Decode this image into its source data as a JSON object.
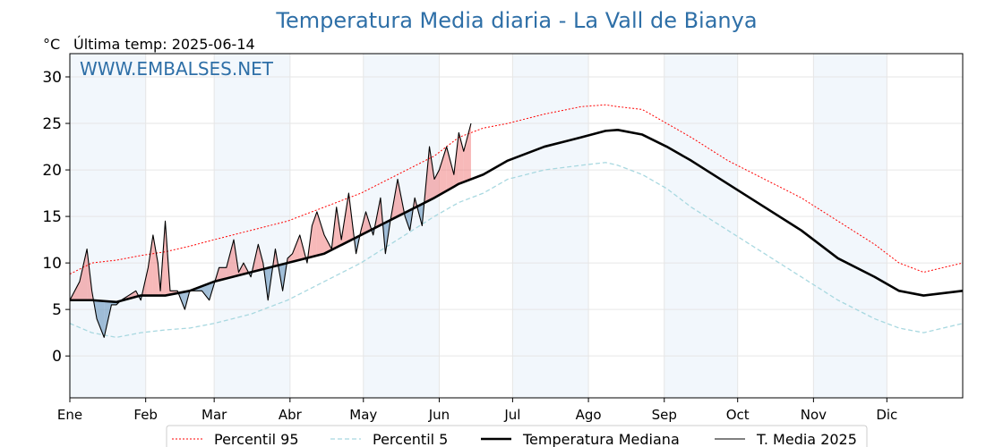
{
  "chart_data": {
    "type": "line",
    "title": "Temperatura Media diaria - La Vall de Bianya",
    "unit_label": "°C",
    "last_temp_label": "Última temp: 2025-06-14",
    "watermark": "WWW.EMBALSES.NET",
    "ylim": [
      -4.5,
      32.5
    ],
    "y_ticks": [
      0,
      5,
      10,
      15,
      20,
      25,
      30
    ],
    "x_range_days": [
      1,
      366
    ],
    "month_labels": [
      "Ene",
      "Feb",
      "Mar",
      "Abr",
      "May",
      "Jun",
      "Jul",
      "Ago",
      "Sep",
      "Oct",
      "Nov",
      "Dic"
    ],
    "month_start_days": [
      1,
      32,
      60,
      91,
      121,
      152,
      182,
      213,
      244,
      274,
      305,
      335
    ],
    "grid": true,
    "shaded_months": [
      "Ene",
      "Mar",
      "May",
      "Jul",
      "Sep",
      "Nov"
    ],
    "legend_position": "bottom-center",
    "series": [
      {
        "name": "Percentil 95",
        "color": "#ff0000",
        "style": "dotted",
        "x": [
          1,
          10,
          20,
          30,
          40,
          50,
          60,
          75,
          90,
          105,
          120,
          135,
          150,
          160,
          170,
          180,
          195,
          210,
          220,
          225,
          235,
          245,
          255,
          270,
          285,
          300,
          315,
          330,
          340,
          350,
          366
        ],
        "y": [
          8.8,
          10.0,
          10.3,
          10.8,
          11.2,
          11.8,
          12.5,
          13.5,
          14.5,
          16.0,
          17.5,
          19.5,
          21.5,
          23.5,
          24.5,
          25.0,
          26.0,
          26.8,
          27.0,
          26.8,
          26.5,
          25.0,
          23.5,
          21.0,
          19.0,
          17.0,
          14.5,
          12.0,
          10.0,
          9.0,
          10.0
        ]
      },
      {
        "name": "Percentil 5",
        "color": "#a8d8e0",
        "style": "dashed",
        "x": [
          1,
          10,
          20,
          30,
          40,
          50,
          60,
          75,
          90,
          105,
          120,
          135,
          150,
          160,
          170,
          180,
          195,
          210,
          220,
          225,
          235,
          245,
          255,
          270,
          285,
          300,
          315,
          330,
          340,
          350,
          366
        ],
        "y": [
          3.5,
          2.5,
          2.0,
          2.5,
          2.8,
          3.0,
          3.5,
          4.5,
          6.0,
          8.0,
          10.0,
          12.5,
          15.0,
          16.5,
          17.5,
          19.0,
          20.0,
          20.5,
          20.8,
          20.5,
          19.5,
          18.0,
          16.0,
          13.5,
          11.0,
          8.5,
          6.0,
          4.0,
          3.0,
          2.5,
          3.5
        ]
      },
      {
        "name": "Temperatura Mediana",
        "color": "#000000",
        "style": "solid-thick",
        "x": [
          1,
          10,
          20,
          30,
          40,
          50,
          60,
          75,
          90,
          105,
          120,
          135,
          150,
          160,
          170,
          180,
          195,
          210,
          220,
          225,
          235,
          245,
          255,
          270,
          285,
          300,
          315,
          330,
          340,
          350,
          366
        ],
        "y": [
          6.0,
          6.0,
          5.8,
          6.5,
          6.5,
          7.0,
          8.0,
          9.0,
          10.0,
          11.0,
          13.0,
          15.0,
          17.0,
          18.5,
          19.5,
          21.0,
          22.5,
          23.5,
          24.2,
          24.3,
          23.8,
          22.5,
          21.0,
          18.5,
          16.0,
          13.5,
          10.5,
          8.5,
          7.0,
          6.5,
          7.0
        ]
      },
      {
        "name": "T. Media 2025",
        "color": "#000000",
        "style": "solid-thin",
        "x": [
          1,
          5,
          8,
          10,
          12,
          15,
          18,
          20,
          22,
          25,
          28,
          30,
          33,
          35,
          37,
          38,
          40,
          42,
          45,
          48,
          50,
          55,
          58,
          62,
          65,
          68,
          70,
          72,
          75,
          78,
          80,
          82,
          85,
          88,
          90,
          92,
          95,
          98,
          100,
          102,
          105,
          108,
          110,
          112,
          115,
          118,
          120,
          122,
          125,
          128,
          130,
          132,
          135,
          138,
          140,
          142,
          145,
          148,
          150,
          152,
          155,
          158,
          160,
          162,
          165
        ],
        "y": [
          6.0,
          8.0,
          11.5,
          7.0,
          4.0,
          2.0,
          5.5,
          5.5,
          6.0,
          6.5,
          7.0,
          6.0,
          9.5,
          13.0,
          10.0,
          7.0,
          14.5,
          7.0,
          7.0,
          5.0,
          7.0,
          7.0,
          6.0,
          9.5,
          9.5,
          12.5,
          9.0,
          10.0,
          8.5,
          12.0,
          10.0,
          6.0,
          11.5,
          7.0,
          10.5,
          11.0,
          13.0,
          10.0,
          14.0,
          15.5,
          13.0,
          11.5,
          16.0,
          12.5,
          17.5,
          11.0,
          13.5,
          15.5,
          13.0,
          17.0,
          11.0,
          14.5,
          19.0,
          15.0,
          13.5,
          17.0,
          14.0,
          22.5,
          19.0,
          20.0,
          22.5,
          19.5,
          24.0,
          22.0,
          25.0
        ]
      }
    ]
  }
}
